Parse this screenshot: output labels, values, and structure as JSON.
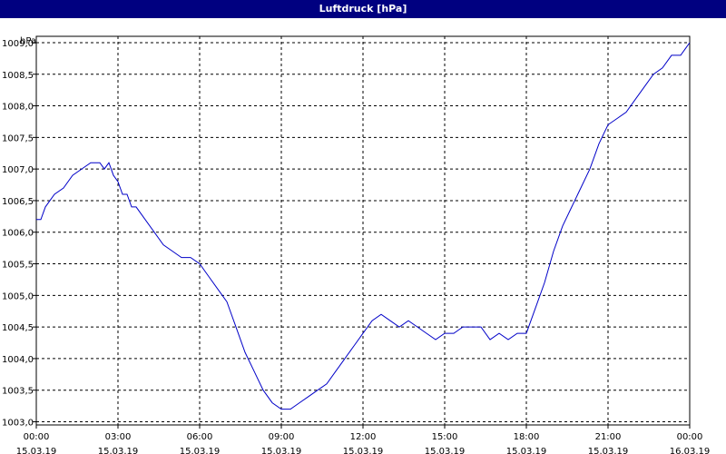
{
  "window": {
    "title": "Luftdruck [hPa]"
  },
  "chart_data": {
    "type": "line",
    "title": "Luftdruck [hPa]",
    "ylabel": "hPa",
    "xlabel": "",
    "xlim": [
      "15.03.19 00:00",
      "16.03.19 00:00"
    ],
    "ylim": [
      1002.95,
      1009.1
    ],
    "grid": true,
    "colors": {
      "line": "#0000c8",
      "grid": "#000000",
      "axis": "#000000",
      "title_bar": "#000080"
    },
    "x_ticks": [
      {
        "time": "00:00",
        "date": "15.03.19"
      },
      {
        "time": "03:00",
        "date": "15.03.19"
      },
      {
        "time": "06:00",
        "date": "15.03.19"
      },
      {
        "time": "09:00",
        "date": "15.03.19"
      },
      {
        "time": "12:00",
        "date": "15.03.19"
      },
      {
        "time": "15:00",
        "date": "15.03.19"
      },
      {
        "time": "18:00",
        "date": "15.03.19"
      },
      {
        "time": "21:00",
        "date": "15.03.19"
      },
      {
        "time": "00:00",
        "date": "16.03.19"
      }
    ],
    "y_ticks": [
      "1003,0",
      "1003,5",
      "1004,0",
      "1004,5",
      "1005,0",
      "1005,5",
      "1006,0",
      "1006,5",
      "1007,0",
      "1007,5",
      "1008,0",
      "1008,5",
      "1009,0"
    ],
    "series": [
      {
        "x": [
          "15.03.19 00:00",
          "15.03.19 00:10",
          "15.03.19 00:20",
          "15.03.19 00:40",
          "15.03.19 01:00",
          "15.03.19 01:20",
          "15.03.19 01:40",
          "15.03.19 02:00",
          "15.03.19 02:20",
          "15.03.19 02:30",
          "15.03.19 02:40",
          "15.03.19 02:50",
          "15.03.19 03:00",
          "15.03.19 03:10",
          "15.03.19 03:20",
          "15.03.19 03:30",
          "15.03.19 03:40",
          "15.03.19 04:00",
          "15.03.19 04:20",
          "15.03.19 04:40",
          "15.03.19 05:00",
          "15.03.19 05:20",
          "15.03.19 05:40",
          "15.03.19 06:00",
          "15.03.19 06:20",
          "15.03.19 06:40",
          "15.03.19 07:00",
          "15.03.19 07:20",
          "15.03.19 07:40",
          "15.03.19 08:00",
          "15.03.19 08:20",
          "15.03.19 08:40",
          "15.03.19 09:00",
          "15.03.19 09:20",
          "15.03.19 09:40",
          "15.03.19 10:00",
          "15.03.19 10:20",
          "15.03.19 10:40",
          "15.03.19 11:00",
          "15.03.19 11:20",
          "15.03.19 11:40",
          "15.03.19 12:00",
          "15.03.19 12:20",
          "15.03.19 12:40",
          "15.03.19 13:00",
          "15.03.19 13:20",
          "15.03.19 13:40",
          "15.03.19 14:00",
          "15.03.19 14:20",
          "15.03.19 14:40",
          "15.03.19 15:00",
          "15.03.19 15:20",
          "15.03.19 15:40",
          "15.03.19 16:00",
          "15.03.19 16:20",
          "15.03.19 16:40",
          "15.03.19 17:00",
          "15.03.19 17:20",
          "15.03.19 17:40",
          "15.03.19 18:00",
          "15.03.19 18:20",
          "15.03.19 18:40",
          "15.03.19 19:00",
          "15.03.19 19:20",
          "15.03.19 19:40",
          "15.03.19 20:00",
          "15.03.19 20:20",
          "15.03.19 20:40",
          "15.03.19 21:00",
          "15.03.19 21:20",
          "15.03.19 21:40",
          "15.03.19 22:00",
          "15.03.19 22:20",
          "15.03.19 22:40",
          "15.03.19 23:00",
          "15.03.19 23:20",
          "15.03.19 23:40",
          "15.03.19 23:50",
          "16.03.19 00:00"
        ],
        "values": [
          1006.2,
          1006.2,
          1006.4,
          1006.6,
          1006.7,
          1006.9,
          1007.0,
          1007.1,
          1007.1,
          1007.0,
          1007.1,
          1006.9,
          1006.8,
          1006.6,
          1006.6,
          1006.4,
          1006.4,
          1006.2,
          1006.0,
          1005.8,
          1005.7,
          1005.6,
          1005.6,
          1005.5,
          1005.3,
          1005.1,
          1004.9,
          1004.5,
          1004.1,
          1003.8,
          1003.5,
          1003.3,
          1003.2,
          1003.2,
          1003.3,
          1003.4,
          1003.5,
          1003.6,
          1003.8,
          1004.0,
          1004.2,
          1004.4,
          1004.6,
          1004.7,
          1004.6,
          1004.5,
          1004.6,
          1004.5,
          1004.4,
          1004.3,
          1004.4,
          1004.4,
          1004.5,
          1004.5,
          1004.5,
          1004.3,
          1004.4,
          1004.3,
          1004.4,
          1004.4,
          1004.8,
          1005.2,
          1005.7,
          1006.1,
          1006.4,
          1006.7,
          1007.0,
          1007.4,
          1007.7,
          1007.8,
          1007.9,
          1008.1,
          1008.3,
          1008.5,
          1008.6,
          1008.8,
          1008.8,
          1008.9,
          1009.0
        ]
      }
    ]
  }
}
